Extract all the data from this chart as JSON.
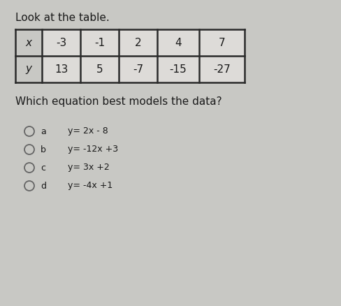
{
  "title": "Look at the table.",
  "table_x_label": "x",
  "table_y_label": "y",
  "x_values": [
    "-3",
    "-1",
    "2",
    "4",
    "7"
  ],
  "y_values": [
    "13",
    "5",
    "-7",
    "-15",
    "-27"
  ],
  "question": "Which equation best models the data?",
  "options": [
    {
      "letter": "a",
      "equation": "y= 2x - 8"
    },
    {
      "letter": "b",
      "equation": "y= -12x +3"
    },
    {
      "letter": "c",
      "equation": "y= 3x +2"
    },
    {
      "letter": "d",
      "equation": "y= -4x +1"
    }
  ],
  "bg_color": "#c8c8c4",
  "table_bg_header": "#c8c8c4",
  "table_bg_data": "#dddbd8",
  "table_border_color": "#2a2a2a",
  "text_color": "#1a1a1a",
  "circle_color": "#666666",
  "title_fontsize": 11,
  "question_fontsize": 11,
  "option_fontsize": 9,
  "table_fontsize": 11
}
